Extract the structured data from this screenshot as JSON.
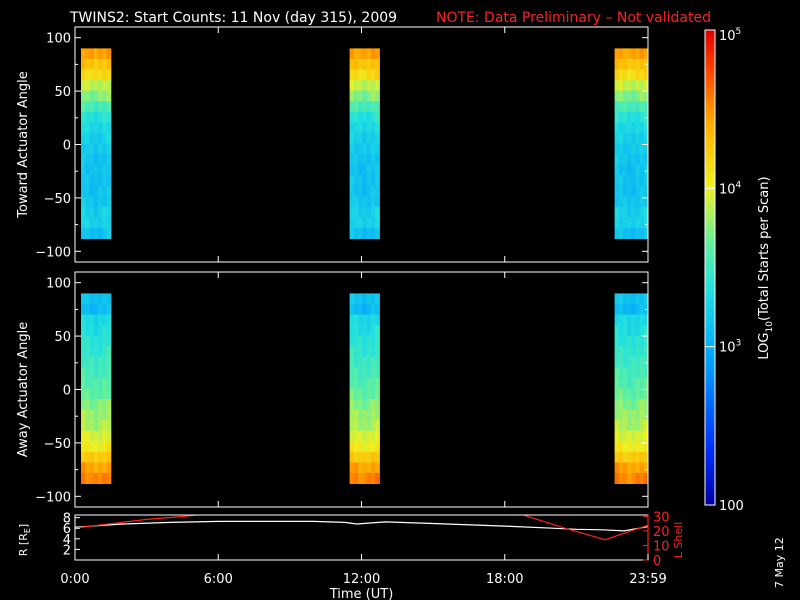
{
  "title": "TWINS2: Start Counts: 11 Nov (day 315), 2009",
  "note": "NOTE: Data Preliminary – Not validated",
  "date_stamp": "7 May 12",
  "colors": {
    "note": "#ff2020",
    "lshell": "#ff2020",
    "r_line": "#ffffff"
  },
  "chart_data": [
    {
      "type": "heatmap",
      "ylabel": "Toward Actuator Angle",
      "ylim": [
        -110,
        110
      ],
      "yticks": [
        "100",
        "50",
        "0",
        "−50",
        "−100"
      ],
      "ytick_values": [
        100,
        50,
        0,
        -50,
        -100
      ],
      "xlim": [
        0,
        24
      ],
      "data_blocks_hours": [
        [
          0.25,
          1.5
        ],
        [
          11.5,
          12.75
        ],
        [
          22.6,
          24
        ]
      ],
      "angle_range": [
        -88,
        90
      ],
      "profile_log10": [
        4.4,
        4.25,
        4.1,
        3.85,
        3.7,
        3.5,
        3.35,
        3.25,
        3.2,
        3.15,
        3.12,
        3.1,
        3.1,
        3.1,
        3.12,
        3.2,
        3.2,
        3.1
      ]
    },
    {
      "type": "heatmap",
      "ylabel": "Away Actuator Angle",
      "ylim": [
        -110,
        110
      ],
      "yticks": [
        "100",
        "50",
        "0",
        "−50",
        "−100"
      ],
      "ytick_values": [
        100,
        50,
        0,
        -50,
        -100
      ],
      "xlim": [
        0,
        24
      ],
      "data_blocks_hours": [
        [
          0.25,
          1.5
        ],
        [
          11.5,
          12.75
        ],
        [
          22.6,
          24
        ]
      ],
      "angle_range": [
        -88,
        90
      ],
      "profile_log10": [
        3.1,
        3.05,
        3.25,
        3.3,
        3.35,
        3.4,
        3.45,
        3.5,
        3.55,
        3.6,
        3.7,
        3.75,
        3.8,
        3.9,
        4.0,
        4.2,
        4.4,
        4.5
      ]
    },
    {
      "type": "line",
      "xlabel": "Time (UT)",
      "xticks": [
        "0:00",
        "6:00",
        "12:00",
        "18:00",
        "23:59"
      ],
      "xtick_hours": [
        0,
        6,
        12,
        18,
        24
      ],
      "ylabel_left": "R [R",
      "ylabel_left_sub": "E",
      "ylabel_left_end": "]",
      "ylabel_right": "L Shell",
      "yticks_left": [
        "8",
        "6",
        "4",
        "2"
      ],
      "yticks_left_values": [
        8,
        6,
        4,
        2
      ],
      "yticks_right": [
        "30",
        "20",
        "10",
        "0"
      ],
      "yticks_right_values": [
        30,
        20,
        10,
        0
      ],
      "ylim_left": [
        0,
        8.5
      ],
      "ylim_right": [
        0,
        31
      ],
      "series": [
        {
          "name": "R",
          "x": [
            0,
            2,
            4,
            6,
            8,
            10,
            11.3,
            11.8,
            13,
            15,
            18,
            20,
            21,
            22.1,
            23,
            24
          ],
          "values": [
            6.2,
            6.8,
            7.1,
            7.3,
            7.3,
            7.3,
            7.1,
            6.8,
            7.2,
            6.9,
            6.4,
            6.0,
            5.8,
            5.7,
            5.5,
            6.3
          ]
        },
        {
          "name": "L Shell",
          "x": [
            0,
            1.5,
            3,
            4.5,
            5.7,
            6.2,
            18.4,
            20.5,
            22.2,
            24
          ],
          "values": [
            22,
            25,
            28,
            30,
            32,
            33,
            33,
            22,
            14,
            24
          ]
        }
      ]
    },
    {
      "type": "colorbar",
      "label_prefix": "LOG",
      "label_sub": "10",
      "label_suffix": "(Total Starts per Scan)",
      "ticks": [
        {
          "base": "10",
          "exp": "5",
          "value_log10": 5
        },
        {
          "base": "10",
          "exp": "4",
          "value_log10": 4
        },
        {
          "base": "10",
          "exp": "3",
          "value_log10": 3
        },
        {
          "base": "100",
          "exp": "",
          "value_log10": 2
        }
      ],
      "range_log10": [
        2,
        5
      ]
    }
  ]
}
